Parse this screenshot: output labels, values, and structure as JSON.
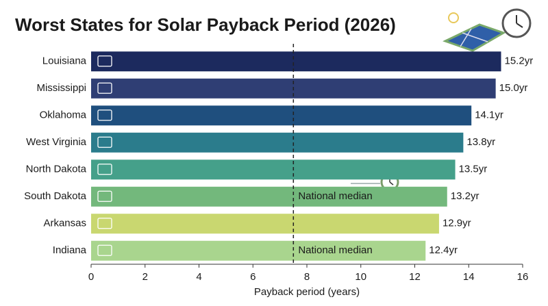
{
  "chart_data": {
    "type": "bar",
    "orientation": "horizontal",
    "title": "Worst States for Solar Payback Period (2026)",
    "x_label": "Payback period (years)",
    "categories": [
      "Louisiana",
      "Mississippi",
      "Oklahoma",
      "West Virginia",
      "North Dakota",
      "South Dakota",
      "Arkansas",
      "Indiana"
    ],
    "values": [
      15.2,
      15.0,
      14.1,
      13.8,
      13.5,
      13.2,
      12.9,
      12.4
    ],
    "value_labels": [
      "15.2yr",
      "15.0yr",
      "14.1yr",
      "13.8yr",
      "13.5yr",
      "13.2yr",
      "12.9yr",
      "12.4yr"
    ],
    "colors": [
      "#1c2a5e",
      "#2f3e74",
      "#1f4f7e",
      "#2b7c8c",
      "#45a08a",
      "#73b87c",
      "#c9d770",
      "#a9d58e"
    ],
    "xlim": [
      0,
      16
    ],
    "xticks": [
      0,
      2,
      4,
      6,
      8,
      10,
      12,
      14,
      16
    ],
    "reference_line": {
      "value": 7.5,
      "label": "National median"
    },
    "reference_label_rows": [
      5,
      7
    ]
  }
}
